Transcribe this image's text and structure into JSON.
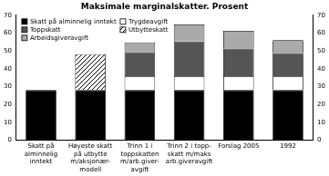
{
  "chart_data": {
    "type": "bar",
    "title": "Maksimale marginalskatter. Prosent",
    "categories": [
      [
        "Skatt på",
        "alminnelig",
        "inntekt"
      ],
      [
        "Høyeste skatt",
        "på utbytte",
        "m/aksjonær-",
        "modell"
      ],
      [
        "Trinn 1 i",
        "toppskatten",
        "m/arb.giver-",
        "avgift"
      ],
      [
        "Trinn 2 i topp-",
        "skatt m/maks",
        "arb.giveravgift"
      ],
      [
        "Forslag 2005"
      ],
      [
        "1992"
      ]
    ],
    "series": [
      {
        "name": "Skatt på alminnelig inntekt",
        "color": "#000000",
        "values": [
          28,
          28,
          28,
          28,
          28,
          28
        ]
      },
      {
        "name": "Trygdeavgift",
        "color": "#ffffff",
        "values": [
          null,
          null,
          7.8,
          7.8,
          7.8,
          7.8
        ]
      },
      {
        "name": "Toppskatt",
        "color": "#555555",
        "values": [
          null,
          null,
          13.5,
          19.5,
          15.5,
          13
        ]
      },
      {
        "name": "Utbytteskatt",
        "color": "#000000",
        "line_style": "hatched",
        "values": [
          null,
          20.2,
          null,
          null,
          null,
          null
        ]
      },
      {
        "name": "Arbeidsgiveravgift",
        "color": "#aaaaaa",
        "values": [
          null,
          null,
          5.5,
          9.6,
          10,
          7.2
        ]
      }
    ],
    "stacked": true,
    "legend": "top-left",
    "ylim": [
      0,
      70
    ],
    "yticks": [
      0,
      10,
      20,
      30,
      40,
      50,
      60,
      70
    ],
    "grid": false
  }
}
